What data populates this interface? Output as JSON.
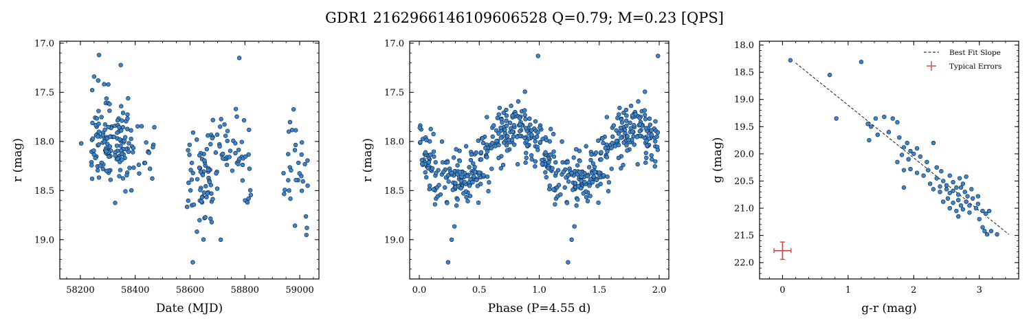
{
  "title": "GDR1 2162966146109606528  Q=0.79; M=0.23 [QPS]",
  "colors": {
    "points": "#3a85d0",
    "edge": "#102030",
    "errors": "#cc4444",
    "fit": "#000000"
  },
  "chart_data": [
    {
      "type": "scatter",
      "xlabel": "Date (MJD)",
      "ylabel": "r (mag)",
      "xlim": [
        58125,
        59070
      ],
      "ylim": [
        19.4,
        16.98
      ],
      "y_inverted": true,
      "xticks": [
        58200,
        58400,
        58600,
        58800,
        59000
      ],
      "yticks": [
        17.0,
        17.5,
        18.0,
        18.5,
        19.0
      ],
      "ytick_labels": [
        "17.0",
        "17.5",
        "18.0",
        "18.5",
        "19.0"
      ],
      "x_minor_step": 50,
      "y_minor_step": 0.1,
      "clusters": [
        {
          "x": [
            58240,
            58390
          ],
          "y_mean": 18.03,
          "y_sd": 0.2,
          "n": 135
        },
        {
          "x": [
            58390,
            58470
          ],
          "y_mean": 18.15,
          "y_sd": 0.25,
          "n": 18
        },
        {
          "x": [
            58580,
            58680
          ],
          "y_mean": 18.42,
          "y_sd": 0.25,
          "n": 62
        },
        {
          "x": [
            58680,
            58830
          ],
          "y_mean": 18.2,
          "y_sd": 0.28,
          "n": 52
        },
        {
          "x": [
            58940,
            59030
          ],
          "y_mean": 18.3,
          "y_sd": 0.27,
          "n": 30
        }
      ],
      "highlights": [
        {
          "x": 58268,
          "y": 17.12
        },
        {
          "x": 58265,
          "y": 17.38
        },
        {
          "x": 58250,
          "y": 17.34
        },
        {
          "x": 58302,
          "y": 17.42
        },
        {
          "x": 58243,
          "y": 18.38
        },
        {
          "x": 58610,
          "y": 19.23
        },
        {
          "x": 58712,
          "y": 19.0
        },
        {
          "x": 58767,
          "y": 17.67
        },
        {
          "x": 59026,
          "y": 18.88
        },
        {
          "x": 58203,
          "y": 18.02
        },
        {
          "x": 58960,
          "y": 17.9
        }
      ]
    },
    {
      "type": "scatter",
      "xlabel": "Phase (P=4.55 d)",
      "ylabel": "r (mag)",
      "xlim": [
        -0.08,
        2.08
      ],
      "ylim": [
        19.4,
        16.98
      ],
      "y_inverted": true,
      "xticks": [
        0.0,
        0.5,
        1.0,
        1.5,
        2.0
      ],
      "xtick_labels": [
        "0.0",
        "0.5",
        "1.0",
        "1.5",
        "2.0"
      ],
      "yticks": [
        17.0,
        17.5,
        18.0,
        18.5,
        19.0
      ],
      "ytick_labels": [
        "17.0",
        "17.5",
        "18.0",
        "18.5",
        "19.0"
      ],
      "x_minor_step": 0.1,
      "y_minor_step": 0.1,
      "n_points": 600,
      "phase_model": {
        "mean": 18.15,
        "amplitude": 0.28,
        "minimum_phase": 0.3,
        "scatter": 0.16
      },
      "highlights": [
        {
          "x": 0.24,
          "y": 19.23
        },
        {
          "x": 1.24,
          "y": 19.23
        },
        {
          "x": 0.99,
          "y": 17.13
        },
        {
          "x": 1.99,
          "y": 17.13
        },
        {
          "x": 0.27,
          "y": 19.0
        },
        {
          "x": 1.27,
          "y": 19.0
        }
      ]
    },
    {
      "type": "scatter",
      "xlabel": "g-r (mag)",
      "ylabel": "g (mag)",
      "xlim": [
        -0.35,
        3.6
      ],
      "ylim": [
        22.3,
        17.93
      ],
      "y_inverted": true,
      "xticks": [
        0,
        1,
        2,
        3
      ],
      "xtick_labels": [
        "0",
        "1",
        "2",
        "3"
      ],
      "yticks": [
        18.0,
        18.5,
        19.0,
        19.5,
        20.0,
        20.5,
        21.0,
        21.5,
        22.0
      ],
      "ytick_labels": [
        "18.0",
        "18.5",
        "19.0",
        "19.5",
        "20.0",
        "20.5",
        "21.0",
        "21.5",
        "22.0"
      ],
      "x_minor_step": 0.2,
      "y_minor_step": 0.1,
      "points": [
        [
          0.12,
          18.28
        ],
        [
          0.72,
          18.55
        ],
        [
          1.2,
          18.31
        ],
        [
          0.82,
          19.35
        ],
        [
          1.3,
          19.45
        ],
        [
          1.35,
          19.5
        ],
        [
          1.42,
          19.35
        ],
        [
          1.55,
          19.32
        ],
        [
          1.62,
          19.6
        ],
        [
          1.68,
          19.35
        ],
        [
          1.75,
          19.42
        ],
        [
          1.32,
          19.75
        ],
        [
          1.45,
          19.65
        ],
        [
          1.78,
          19.7
        ],
        [
          1.85,
          19.88
        ],
        [
          1.9,
          19.8
        ],
        [
          1.95,
          19.95
        ],
        [
          2.0,
          20.0
        ],
        [
          2.05,
          19.9
        ],
        [
          1.82,
          20.02
        ],
        [
          1.92,
          20.1
        ],
        [
          2.1,
          20.05
        ],
        [
          2.2,
          20.15
        ],
        [
          2.3,
          19.8
        ],
        [
          1.75,
          20.15
        ],
        [
          1.85,
          20.3
        ],
        [
          1.95,
          20.28
        ],
        [
          2.05,
          20.35
        ],
        [
          2.15,
          20.4
        ],
        [
          2.22,
          20.3
        ],
        [
          2.35,
          20.25
        ],
        [
          2.42,
          20.32
        ],
        [
          1.85,
          20.62
        ],
        [
          2.25,
          20.55
        ],
        [
          2.35,
          20.45
        ],
        [
          2.45,
          20.5
        ],
        [
          2.5,
          20.58
        ],
        [
          2.55,
          20.4
        ],
        [
          2.6,
          20.52
        ],
        [
          2.65,
          20.62
        ],
        [
          2.7,
          20.45
        ],
        [
          2.75,
          20.55
        ],
        [
          2.8,
          20.42
        ],
        [
          2.3,
          20.65
        ],
        [
          2.4,
          20.7
        ],
        [
          2.5,
          20.65
        ],
        [
          2.55,
          20.72
        ],
        [
          2.6,
          20.68
        ],
        [
          2.68,
          20.75
        ],
        [
          2.72,
          20.62
        ],
        [
          2.78,
          20.7
        ],
        [
          2.82,
          20.78
        ],
        [
          2.88,
          20.65
        ],
        [
          2.45,
          20.88
        ],
        [
          2.52,
          20.82
        ],
        [
          2.6,
          20.9
        ],
        [
          2.68,
          20.85
        ],
        [
          2.72,
          20.95
        ],
        [
          2.8,
          20.88
        ],
        [
          2.85,
          20.95
        ],
        [
          2.9,
          20.82
        ],
        [
          2.98,
          20.92
        ],
        [
          2.55,
          21.0
        ],
        [
          2.65,
          21.05
        ],
        [
          2.75,
          21.02
        ],
        [
          2.85,
          21.08
        ],
        [
          2.95,
          21.0
        ],
        [
          3.05,
          21.05
        ],
        [
          3.1,
          21.1
        ],
        [
          3.15,
          21.05
        ],
        [
          2.68,
          21.15
        ],
        [
          3.0,
          21.2
        ],
        [
          3.05,
          21.35
        ],
        [
          3.08,
          21.42
        ],
        [
          3.12,
          21.48
        ],
        [
          3.18,
          21.42
        ],
        [
          3.27,
          21.48
        ],
        [
          2.98,
          20.78
        ],
        [
          2.4,
          20.6
        ]
      ],
      "fit_line": [
        [
          0.2,
          18.33
        ],
        [
          3.45,
          21.48
        ]
      ],
      "typical_errors": {
        "x": 0.0,
        "y": 21.78,
        "xerr": 0.13,
        "yerr": 0.16
      },
      "legend": {
        "position": "top-right",
        "entries": [
          "Best Fit Slope",
          "Typical Errors"
        ]
      }
    }
  ]
}
